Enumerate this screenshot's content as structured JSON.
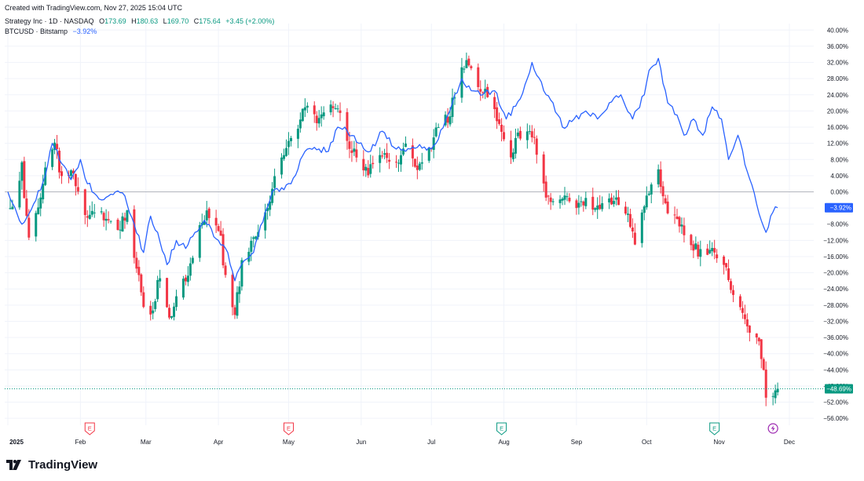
{
  "created": "Created with TradingView.com, Nov 27, 2025 15:04 UTC",
  "legend": {
    "main": {
      "name": "Strategy Inc · 1D · NASDAQ",
      "o_label": "O",
      "o": "173.69",
      "h_label": "H",
      "h": "180.63",
      "l_label": "L",
      "l": "169.70",
      "c_label": "C",
      "c": "175.64",
      "change": "+3.45 (+2.00%)"
    },
    "compare": {
      "name": "BTCUSD · Bitstamp",
      "change": "−3.92%"
    }
  },
  "footer": {
    "brand": "TradingView"
  },
  "colors": {
    "up": "#089981",
    "down": "#f23645",
    "compare": "#2962ff",
    "grid": "#f0f3fa",
    "zero": "#b2b5be"
  },
  "chart_data": {
    "type": "candlestick+line",
    "y_unit": "% change",
    "y_range": [
      -58,
      42
    ],
    "y_ticks": [
      "40.00%",
      "36.00%",
      "32.00%",
      "28.00%",
      "24.00%",
      "20.00%",
      "16.00%",
      "12.00%",
      "8.00%",
      "4.00%",
      "0.00%",
      "−4.00%",
      "−8.00%",
      "−12.00%",
      "−16.00%",
      "−20.00%",
      "−24.00%",
      "−28.00%",
      "−32.00%",
      "−36.00%",
      "−40.00%",
      "−44.00%",
      "−48.00%",
      "−52.00%",
      "−56.00%"
    ],
    "x_ticks": [
      {
        "label": "2025",
        "bold": true,
        "date": "2025-01-01"
      },
      {
        "label": "Feb",
        "date": "2025-02-01"
      },
      {
        "label": "Mar",
        "date": "2025-03-01"
      },
      {
        "label": "Apr",
        "date": "2025-04-01"
      },
      {
        "label": "May",
        "date": "2025-05-01"
      },
      {
        "label": "Jun",
        "date": "2025-06-01"
      },
      {
        "label": "Jul",
        "date": "2025-07-01"
      },
      {
        "label": "Aug",
        "date": "2025-08-01"
      },
      {
        "label": "Sep",
        "date": "2025-09-01"
      },
      {
        "label": "Oct",
        "date": "2025-10-01"
      },
      {
        "label": "Nov",
        "date": "2025-11-01"
      },
      {
        "label": "Dec",
        "date": "2025-12-01"
      }
    ],
    "events": [
      {
        "label": "E",
        "date": "2025-02-05",
        "color": "#f23645"
      },
      {
        "label": "E",
        "date": "2025-05-01",
        "color": "#f23645"
      },
      {
        "label": "E",
        "date": "2025-07-31",
        "color": "#089981"
      },
      {
        "label": "E",
        "date": "2025-10-30",
        "color": "#089981"
      },
      {
        "icon": "dividend-bolt",
        "date": "2025-11-24",
        "color": "#9c27b0"
      }
    ],
    "main_series": {
      "name": "Strategy Inc",
      "last_label": "−48.69%",
      "last_value": -48.69,
      "keypoints": [
        [
          "2025-01-02",
          -5
        ],
        [
          "2025-01-07",
          6
        ],
        [
          "2025-01-10",
          -12
        ],
        [
          "2025-01-14",
          -3
        ],
        [
          "2025-01-17",
          5
        ],
        [
          "2025-01-21",
          12
        ],
        [
          "2025-01-24",
          3
        ],
        [
          "2025-01-29",
          5
        ],
        [
          "2025-02-03",
          -7
        ],
        [
          "2025-02-07",
          -4
        ],
        [
          "2025-02-12",
          -6
        ],
        [
          "2025-02-18",
          -9
        ],
        [
          "2025-02-21",
          -5
        ],
        [
          "2025-02-25",
          -18
        ],
        [
          "2025-02-28",
          -28
        ],
        [
          "2025-03-04",
          -30
        ],
        [
          "2025-03-07",
          -20
        ],
        [
          "2025-03-11",
          -32
        ],
        [
          "2025-03-14",
          -25
        ],
        [
          "2025-03-19",
          -20
        ],
        [
          "2025-03-24",
          -8
        ],
        [
          "2025-03-28",
          -5
        ],
        [
          "2025-04-02",
          -12
        ],
        [
          "2025-04-04",
          -22
        ],
        [
          "2025-04-08",
          -30
        ],
        [
          "2025-04-11",
          -18
        ],
        [
          "2025-04-16",
          -12
        ],
        [
          "2025-04-22",
          -5
        ],
        [
          "2025-04-25",
          5
        ],
        [
          "2025-04-30",
          10
        ],
        [
          "2025-05-05",
          16
        ],
        [
          "2025-05-09",
          22
        ],
        [
          "2025-05-13",
          18
        ],
        [
          "2025-05-16",
          20
        ],
        [
          "2025-05-21",
          22
        ],
        [
          "2025-05-27",
          12
        ],
        [
          "2025-05-30",
          8
        ],
        [
          "2025-06-04",
          5
        ],
        [
          "2025-06-10",
          10
        ],
        [
          "2025-06-16",
          7
        ],
        [
          "2025-06-20",
          12
        ],
        [
          "2025-06-25",
          5
        ],
        [
          "2025-06-30",
          10
        ],
        [
          "2025-07-03",
          16
        ],
        [
          "2025-07-08",
          18
        ],
        [
          "2025-07-11",
          24
        ],
        [
          "2025-07-14",
          30
        ],
        [
          "2025-07-17",
          32
        ],
        [
          "2025-07-21",
          25
        ],
        [
          "2025-07-24",
          26
        ],
        [
          "2025-07-29",
          18
        ],
        [
          "2025-08-01",
          12
        ],
        [
          "2025-08-04",
          8
        ],
        [
          "2025-08-07",
          14
        ],
        [
          "2025-08-12",
          16
        ],
        [
          "2025-08-15",
          10
        ],
        [
          "2025-08-19",
          0
        ],
        [
          "2025-08-22",
          -2
        ],
        [
          "2025-08-27",
          -2
        ],
        [
          "2025-09-02",
          -4
        ],
        [
          "2025-09-05",
          -3
        ],
        [
          "2025-09-10",
          -4
        ],
        [
          "2025-09-16",
          -3
        ],
        [
          "2025-09-19",
          -2
        ],
        [
          "2025-09-23",
          -5
        ],
        [
          "2025-09-26",
          -12
        ],
        [
          "2025-09-30",
          -4
        ],
        [
          "2025-10-03",
          3
        ],
        [
          "2025-10-06",
          4
        ],
        [
          "2025-10-10",
          -4
        ],
        [
          "2025-10-14",
          -6
        ],
        [
          "2025-10-17",
          -10
        ],
        [
          "2025-10-22",
          -14
        ],
        [
          "2025-10-27",
          -16
        ],
        [
          "2025-10-30",
          -14
        ],
        [
          "2025-11-04",
          -20
        ],
        [
          "2025-11-07",
          -25
        ],
        [
          "2025-11-12",
          -30
        ],
        [
          "2025-11-14",
          -35
        ],
        [
          "2025-11-18",
          -38
        ],
        [
          "2025-11-20",
          -44
        ],
        [
          "2025-11-21",
          -50
        ],
        [
          "2025-11-24",
          -50
        ],
        [
          "2025-11-26",
          -48.69
        ]
      ]
    },
    "compare_series": {
      "name": "BTCUSD · Bitstamp",
      "last_label": "−3.92%",
      "last_value": -3.92,
      "points": [
        [
          "2025-01-01",
          0
        ],
        [
          "2025-01-07",
          -8
        ],
        [
          "2025-01-12",
          -3
        ],
        [
          "2025-01-17",
          4
        ],
        [
          "2025-01-20",
          12
        ],
        [
          "2025-01-24",
          7
        ],
        [
          "2025-01-28",
          3
        ],
        [
          "2025-02-01",
          8
        ],
        [
          "2025-02-04",
          2
        ],
        [
          "2025-02-10",
          -2
        ],
        [
          "2025-02-16",
          0
        ],
        [
          "2025-02-20",
          -1
        ],
        [
          "2025-02-24",
          -8
        ],
        [
          "2025-02-28",
          -15
        ],
        [
          "2025-03-03",
          -6
        ],
        [
          "2025-03-06",
          -10
        ],
        [
          "2025-03-10",
          -18
        ],
        [
          "2025-03-14",
          -12
        ],
        [
          "2025-03-18",
          -14
        ],
        [
          "2025-03-22",
          -10
        ],
        [
          "2025-03-26",
          -7
        ],
        [
          "2025-04-01",
          -12
        ],
        [
          "2025-04-05",
          -15
        ],
        [
          "2025-04-08",
          -22
        ],
        [
          "2025-04-12",
          -17
        ],
        [
          "2025-04-16",
          -15
        ],
        [
          "2025-04-21",
          -5
        ],
        [
          "2025-04-24",
          0
        ],
        [
          "2025-04-28",
          1
        ],
        [
          "2025-05-02",
          2
        ],
        [
          "2025-05-08",
          10
        ],
        [
          "2025-05-12",
          11
        ],
        [
          "2025-05-18",
          10
        ],
        [
          "2025-05-22",
          16
        ],
        [
          "2025-05-26",
          15
        ],
        [
          "2025-05-31",
          12
        ],
        [
          "2025-06-05",
          10
        ],
        [
          "2025-06-10",
          15
        ],
        [
          "2025-06-15",
          11
        ],
        [
          "2025-06-20",
          10
        ],
        [
          "2025-06-25",
          11
        ],
        [
          "2025-06-30",
          11
        ],
        [
          "2025-07-03",
          12
        ],
        [
          "2025-07-10",
          22
        ],
        [
          "2025-07-14",
          28
        ],
        [
          "2025-07-18",
          25
        ],
        [
          "2025-07-23",
          24
        ],
        [
          "2025-07-28",
          25
        ],
        [
          "2025-08-02",
          18
        ],
        [
          "2025-08-08",
          23
        ],
        [
          "2025-08-13",
          32
        ],
        [
          "2025-08-18",
          25
        ],
        [
          "2025-08-22",
          22
        ],
        [
          "2025-08-26",
          16
        ],
        [
          "2025-08-31",
          18
        ],
        [
          "2025-09-05",
          20
        ],
        [
          "2025-09-10",
          18
        ],
        [
          "2025-09-15",
          22
        ],
        [
          "2025-09-20",
          24
        ],
        [
          "2025-09-25",
          18
        ],
        [
          "2025-09-30",
          24
        ],
        [
          "2025-10-02",
          30
        ],
        [
          "2025-10-06",
          33
        ],
        [
          "2025-10-10",
          22
        ],
        [
          "2025-10-14",
          19
        ],
        [
          "2025-10-17",
          14
        ],
        [
          "2025-10-21",
          18
        ],
        [
          "2025-10-25",
          14
        ],
        [
          "2025-10-29",
          21
        ],
        [
          "2025-11-02",
          18
        ],
        [
          "2025-11-05",
          8
        ],
        [
          "2025-11-09",
          14
        ],
        [
          "2025-11-13",
          5
        ],
        [
          "2025-11-17",
          -3
        ],
        [
          "2025-11-21",
          -10
        ],
        [
          "2025-11-24",
          -5
        ],
        [
          "2025-11-26",
          -3.92
        ]
      ]
    }
  }
}
